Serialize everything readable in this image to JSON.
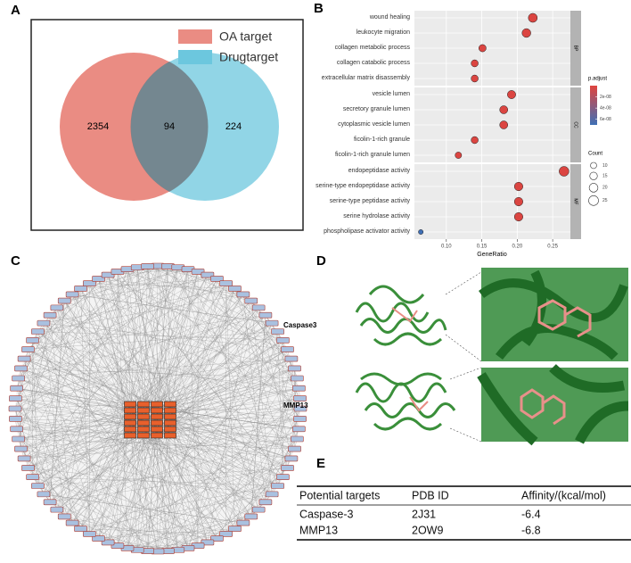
{
  "panel_labels": [
    "A",
    "B",
    "C",
    "D",
    "E"
  ],
  "venn": {
    "legend": [
      "OA target",
      "Drugtarget"
    ],
    "counts": [
      2354,
      94,
      224
    ]
  },
  "dotplot": {
    "type": "dot",
    "xlabel": "GeneRatio",
    "xlim": [
      0.055,
      0.275
    ],
    "xticks": [
      {
        "value": 0.1,
        "label": "0.10"
      },
      {
        "value": 0.15,
        "label": "0.15"
      },
      {
        "value": 0.2,
        "label": "0.20"
      },
      {
        "value": 0.25,
        "label": "0.25"
      }
    ],
    "color_legend_title": "p.adjust",
    "color_lim": [
      0,
      7e-08
    ],
    "color_ticks": [
      {
        "value": 2e-08,
        "label": "2e-08"
      },
      {
        "value": 4e-08,
        "label": "4e-08"
      },
      {
        "value": 6e-08,
        "label": "6e-08"
      }
    ],
    "size_legend_title": "Count",
    "size_ticks": [
      10,
      15,
      20,
      25
    ],
    "facets": [
      {
        "name": "BP",
        "categories": [
          "wound healing",
          "leukocyte migration",
          "collagen metabolic process",
          "collagen catabolic process",
          "extracellular matrix disassembly"
        ],
        "gene_ratio": [
          0.222,
          0.213,
          0.151,
          0.14,
          0.14
        ],
        "count": [
          21,
          20,
          14,
          13,
          13
        ],
        "p_adjust": [
          2e-09,
          2e-09,
          2e-09,
          2e-09,
          2e-09
        ]
      },
      {
        "name": "CC",
        "categories": [
          "vesicle lumen",
          "secretory granule lumen",
          "cytoplasmic vesicle lumen",
          "ficolin-1-rich granule",
          "ficolin-1-rich granule lumen"
        ],
        "gene_ratio": [
          0.192,
          0.181,
          0.181,
          0.14,
          0.117
        ],
        "count": [
          18,
          17,
          17,
          13,
          11
        ],
        "p_adjust": [
          2e-09,
          2e-09,
          2e-09,
          2e-09,
          2e-09
        ]
      },
      {
        "name": "MF",
        "categories": [
          "endopeptidase activity",
          "serine-type endopeptidase activity",
          "serine-type peptidase activity",
          "serine hydrolase activity",
          "phospholipase activator activity"
        ],
        "gene_ratio": [
          0.266,
          0.202,
          0.202,
          0.202,
          0.064
        ],
        "count": [
          25,
          19,
          19,
          19,
          6
        ],
        "p_adjust": [
          2e-09,
          2e-09,
          2e-09,
          2e-09,
          7e-08
        ]
      }
    ]
  },
  "docking": [
    "Caspase3",
    "MMP13"
  ],
  "table": {
    "headers": [
      "Potential targets",
      "PDB ID",
      "Affinity/(kcal/mol)"
    ],
    "rows": [
      [
        "Caspase-3",
        "2J31",
        "-6.4"
      ],
      [
        "MMP13",
        "2OW9",
        "-6.8"
      ]
    ]
  }
}
